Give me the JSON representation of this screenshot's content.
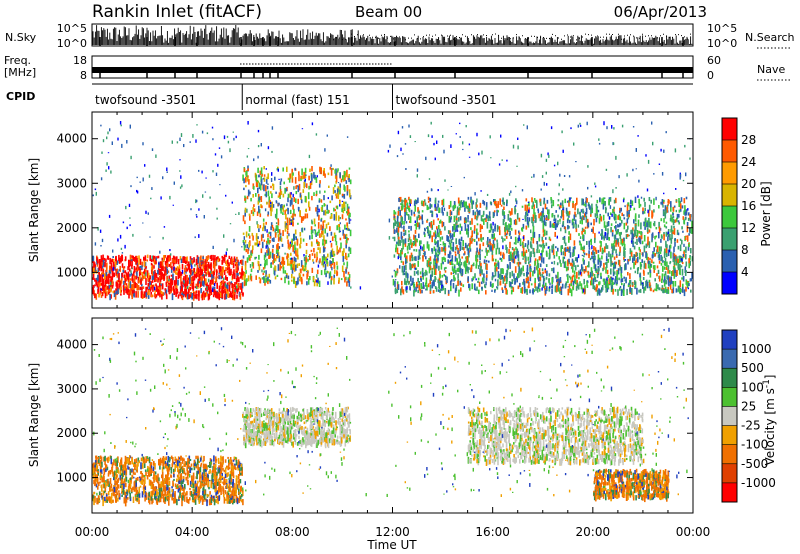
{
  "header": {
    "station": "Rankin Inlet (fitACF)",
    "beam": "Beam 00",
    "date": "06/Apr/2013"
  },
  "noise_panel": {
    "left_label": "N.Sky",
    "right_label": "N.Search",
    "left_ticks": [
      "10^5",
      "10^0"
    ],
    "right_ticks": [
      "10^5",
      "10^0"
    ]
  },
  "freq_panel": {
    "left_label_line1": "Freq.",
    "left_label_line2": "[MHz]",
    "right_label": "Nave",
    "left_ticks": [
      "18",
      "8"
    ],
    "right_ticks": [
      "60",
      "0"
    ]
  },
  "cpid_panel": {
    "label": "CPID",
    "modes": [
      {
        "name": "twofsound -3501",
        "start_hour": 0,
        "end_hour": 6
      },
      {
        "name": "normal (fast) 151",
        "start_hour": 6,
        "end_hour": 12
      },
      {
        "name": "twofsound -3501",
        "start_hour": 12,
        "end_hour": 24
      }
    ]
  },
  "chart_data": [
    {
      "type": "heatmap",
      "title": "",
      "xlabel": "",
      "ylabel": "Slant Range [km]",
      "xlim": [
        0,
        24
      ],
      "ylim": [
        200,
        4600
      ],
      "y_ticks": [
        1000,
        2000,
        3000,
        4000
      ],
      "colorbar": {
        "label": "Power [dB]",
        "ticks": [
          "28",
          "24",
          "20",
          "16",
          "12",
          "8",
          "4"
        ],
        "colors": [
          "#ff0000",
          "#ff5a00",
          "#ff9b00",
          "#d8b400",
          "#3cc83c",
          "#3aa070",
          "#2a60b0",
          "#0000ff"
        ]
      },
      "summary_regions": [
        {
          "time_hours": [
            0,
            6
          ],
          "range_km": [
            500,
            1400
          ],
          "dominant_db": 26
        },
        {
          "time_hours": [
            6,
            10.3
          ],
          "range_km": [
            800,
            3400
          ],
          "dominant_db": 20
        },
        {
          "time_hours": [
            12,
            24
          ],
          "range_km": [
            600,
            2700
          ],
          "dominant_db": 12
        }
      ]
    },
    {
      "type": "heatmap",
      "title": "",
      "xlabel": "Time UT",
      "ylabel": "Slant Range [km]",
      "xlim": [
        0,
        24
      ],
      "ylim": [
        200,
        4600
      ],
      "x_ticks": [
        "00:00",
        "04:00",
        "08:00",
        "12:00",
        "16:00",
        "20:00",
        "00:00"
      ],
      "y_ticks": [
        1000,
        2000,
        3000,
        4000
      ],
      "colorbar": {
        "label": "Velocity [m s^-1]",
        "ticks": [
          "1000",
          "500",
          "100",
          "25",
          "-25",
          "-100",
          "-500",
          "-1000"
        ],
        "colors": [
          "#2040c0",
          "#3a6ab0",
          "#2e8a4a",
          "#4cc030",
          "#c8c8c0",
          "#f0a000",
          "#f07000",
          "#e04000",
          "#ff0000"
        ]
      },
      "summary_regions": [
        {
          "time_hours": [
            0,
            6
          ],
          "range_km": [
            500,
            1500
          ],
          "dominant_velocity": -200
        },
        {
          "time_hours": [
            6,
            10.3
          ],
          "range_km": [
            1800,
            2600
          ],
          "dominant_velocity": 0
        },
        {
          "time_hours": [
            15,
            22
          ],
          "range_km": [
            1400,
            2600
          ],
          "dominant_velocity": 0
        },
        {
          "time_hours": [
            20,
            23
          ],
          "range_km": [
            600,
            1200
          ],
          "dominant_velocity": -300
        }
      ]
    }
  ]
}
